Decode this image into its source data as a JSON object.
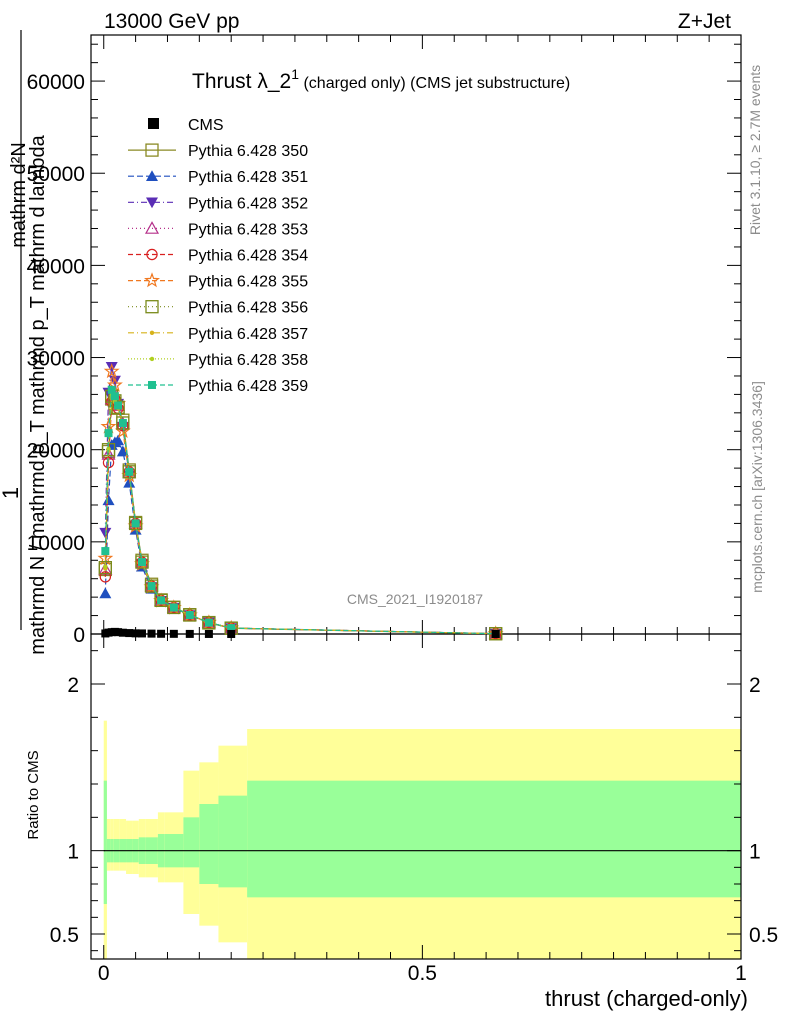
{
  "header": {
    "energy": "13000 GeV pp",
    "process": "Z+Jet"
  },
  "side": {
    "rivet": "Rivet 3.1.10, ≥ 2.7M events",
    "mcplots": "mcplots.cern.ch [arXiv:1306.3436]"
  },
  "chart_data": [
    {
      "type": "line",
      "panel": "main",
      "title_main": "Thrust λ_2",
      "title_sup": "1",
      "title_rest": " (charged only) (CMS jet substructure)",
      "watermark": "CMS_2021_I1920187",
      "ylabel_lines": [
        "1",
        "mathrmd N / mathrmd p_T mathrmd p_T mathrm d lambda",
        "mathrm d²N"
      ],
      "ylabel_main": "1",
      "ylabel_mid": "mathrmd N / mathrmd d p",
      "ylabel_mid2": "mathrm d p",
      "ylabel_top": "mathrm d²N",
      "ylabel_over": "mathrm d p_T mathrm d lambda",
      "ylim": [
        0,
        65000
      ],
      "yticks": [
        0,
        10000,
        20000,
        30000,
        40000,
        50000,
        60000
      ],
      "ytick_labels": [
        "0",
        "10000",
        "20000",
        "30000",
        "40000",
        "50000",
        "60000"
      ],
      "xlim": [
        -0.02,
        1.0
      ],
      "legend_position": "top-left",
      "reference": {
        "name": "CMS",
        "color": "#000000",
        "x": [
          0.0025,
          0.0075,
          0.0125,
          0.0175,
          0.0225,
          0.03,
          0.04,
          0.05,
          0.06,
          0.075,
          0.09,
          0.11,
          0.135,
          0.165,
          0.2,
          0.615
        ],
        "y": [
          60,
          150,
          200,
          230,
          200,
          140,
          100,
          70,
          60,
          40,
          25,
          18,
          10,
          5,
          3,
          1
        ]
      },
      "series": [
        {
          "name": "Pythia 6.428 350",
          "color": "#8a8a24",
          "dash": "",
          "marker": "square-open",
          "x": [
            0.0025,
            0.0075,
            0.0125,
            0.0175,
            0.0225,
            0.03,
            0.04,
            0.05,
            0.06,
            0.075,
            0.09,
            0.11,
            0.135,
            0.165,
            0.2,
            0.615
          ],
          "y": [
            7000,
            19800,
            25500,
            25000,
            24500,
            23200,
            17800,
            12100,
            8000,
            5400,
            3700,
            2900,
            2100,
            1200,
            620,
            30
          ]
        },
        {
          "name": "Pythia 6.428 351",
          "color": "#1f4fbf",
          "dash": "6,3",
          "marker": "triangle-up",
          "x": [
            0.0025,
            0.0075,
            0.0125,
            0.0175,
            0.0225,
            0.03,
            0.04,
            0.05,
            0.06,
            0.075,
            0.09,
            0.11,
            0.135,
            0.165,
            0.2,
            0.615
          ],
          "y": [
            4400,
            14500,
            20500,
            20800,
            21000,
            19800,
            16400,
            11300,
            7300,
            4900,
            3500,
            2800,
            2000,
            1250,
            640,
            30
          ]
        },
        {
          "name": "Pythia 6.428 352",
          "color": "#5a2db5",
          "dash": "6,3,1,3",
          "marker": "triangle-down",
          "x": [
            0.0025,
            0.0075,
            0.0125,
            0.0175,
            0.0225,
            0.03,
            0.04,
            0.05,
            0.06,
            0.075,
            0.09,
            0.11,
            0.135,
            0.165,
            0.2,
            0.615
          ],
          "y": [
            11000,
            26200,
            29000,
            27500,
            25000,
            22500,
            17200,
            11800,
            7600,
            5100,
            3600,
            2850,
            2050,
            1250,
            640,
            30
          ]
        },
        {
          "name": "Pythia 6.428 353",
          "color": "#b5308a",
          "dash": "1,3",
          "marker": "triangle-up-open",
          "x": [
            0.0025,
            0.0075,
            0.0125,
            0.0175,
            0.0225,
            0.03,
            0.04,
            0.05,
            0.06,
            0.075,
            0.09,
            0.11,
            0.135,
            0.165,
            0.2,
            0.615
          ],
          "y": [
            7000,
            19500,
            25500,
            25800,
            24800,
            22800,
            17500,
            12000,
            7800,
            5200,
            3650,
            2880,
            2060,
            1240,
            640,
            30
          ]
        },
        {
          "name": "Pythia 6.428 354",
          "color": "#d92020",
          "dash": "5,3",
          "marker": "circle-open",
          "x": [
            0.0025,
            0.0075,
            0.0125,
            0.0175,
            0.0225,
            0.03,
            0.04,
            0.05,
            0.06,
            0.075,
            0.09,
            0.11,
            0.135,
            0.165,
            0.2,
            0.615
          ],
          "y": [
            6200,
            18600,
            25200,
            25500,
            24500,
            22600,
            17600,
            12000,
            7800,
            5200,
            3650,
            2870,
            2060,
            1240,
            640,
            30
          ]
        },
        {
          "name": "Pythia 6.428 355",
          "color": "#f07820",
          "dash": "5,3",
          "marker": "star-open",
          "x": [
            0.0025,
            0.0075,
            0.0125,
            0.0175,
            0.0225,
            0.03,
            0.04,
            0.05,
            0.06,
            0.075,
            0.09,
            0.11,
            0.135,
            0.165,
            0.2,
            0.615
          ],
          "y": [
            8200,
            22500,
            28500,
            27000,
            25000,
            22000,
            17200,
            11700,
            7600,
            5100,
            3600,
            2850,
            2050,
            1240,
            640,
            30
          ]
        },
        {
          "name": "Pythia 6.428 356",
          "color": "#7a8a1a",
          "dash": "1,3",
          "marker": "square-open",
          "x": [
            0.0025,
            0.0075,
            0.0125,
            0.0175,
            0.0225,
            0.03,
            0.04,
            0.05,
            0.06,
            0.075,
            0.09,
            0.11,
            0.135,
            0.165,
            0.2,
            0.615
          ],
          "y": [
            7200,
            20000,
            25800,
            25300,
            24600,
            22900,
            17600,
            12000,
            7800,
            5200,
            3650,
            2880,
            2060,
            1240,
            640,
            30
          ]
        },
        {
          "name": "Pythia 6.428 357",
          "color": "#d6b21a",
          "dash": "6,3,1,3",
          "marker": "dot",
          "x": [
            0.0025,
            0.0075,
            0.0125,
            0.0175,
            0.0225,
            0.03,
            0.04,
            0.05,
            0.06,
            0.075,
            0.09,
            0.11,
            0.135,
            0.165,
            0.2,
            0.615
          ],
          "y": [
            7100,
            19900,
            25600,
            25200,
            24500,
            22800,
            17500,
            11900,
            7800,
            5200,
            3650,
            2880,
            2060,
            1240,
            640,
            30
          ]
        },
        {
          "name": "Pythia 6.428 358",
          "color": "#b0d020",
          "dash": "1,2",
          "marker": "dot",
          "x": [
            0.0025,
            0.0075,
            0.0125,
            0.0175,
            0.0225,
            0.03,
            0.04,
            0.05,
            0.06,
            0.075,
            0.09,
            0.11,
            0.135,
            0.165,
            0.2,
            0.615
          ],
          "y": [
            7300,
            20100,
            25900,
            25400,
            24700,
            22900,
            17600,
            12000,
            7800,
            5200,
            3650,
            2880,
            2060,
            1240,
            640,
            30
          ]
        },
        {
          "name": "Pythia 6.428 359",
          "color": "#20c090",
          "dash": "5,3",
          "marker": "square",
          "x": [
            0.0025,
            0.0075,
            0.0125,
            0.0175,
            0.0225,
            0.03,
            0.04,
            0.05,
            0.06,
            0.075,
            0.09,
            0.11,
            0.135,
            0.165,
            0.2,
            0.615
          ],
          "y": [
            9000,
            21800,
            26500,
            25800,
            24800,
            22900,
            17600,
            12000,
            7800,
            5200,
            3650,
            2880,
            2060,
            1240,
            640,
            30
          ]
        }
      ]
    },
    {
      "type": "area",
      "panel": "ratio",
      "ylabel": "Ratio to CMS",
      "xlabel": "thrust (charged-only)",
      "ylim": [
        0.35,
        2.3
      ],
      "xlim": [
        -0.02,
        1.0
      ],
      "yticks": [
        0.5,
        1,
        2
      ],
      "ytick_labels": [
        "0.5",
        "1",
        "2"
      ],
      "xticks": [
        0,
        0.5,
        1
      ],
      "xtick_labels": [
        "0",
        "0.5",
        "1"
      ],
      "reference_line": 1,
      "bands": {
        "edges": [
          0,
          0.005,
          0.01,
          0.015,
          0.02,
          0.025,
          0.035,
          0.045,
          0.055,
          0.065,
          0.085,
          0.095,
          0.125,
          0.15,
          0.18,
          0.225,
          1.0
        ],
        "outer_color": "#ffff99",
        "inner_color": "#99ff99",
        "inner_lo": [
          0.68,
          0.93,
          0.93,
          0.93,
          0.93,
          0.93,
          0.93,
          0.93,
          0.92,
          0.92,
          0.9,
          0.9,
          0.9,
          0.8,
          0.78,
          0.72
        ],
        "inner_hi": [
          1.42,
          1.07,
          1.07,
          1.07,
          1.07,
          1.07,
          1.07,
          1.07,
          1.08,
          1.08,
          1.1,
          1.1,
          1.2,
          1.28,
          1.33,
          1.42
        ],
        "outer_lo": [
          0.35,
          0.88,
          0.88,
          0.88,
          0.88,
          0.88,
          0.86,
          0.86,
          0.84,
          0.84,
          0.81,
          0.81,
          0.62,
          0.55,
          0.45,
          0.35
        ],
        "outer_hi": [
          1.78,
          1.19,
          1.19,
          1.19,
          1.19,
          1.19,
          1.18,
          1.18,
          1.19,
          1.19,
          1.23,
          1.23,
          1.48,
          1.53,
          1.63,
          1.73
        ]
      }
    }
  ]
}
